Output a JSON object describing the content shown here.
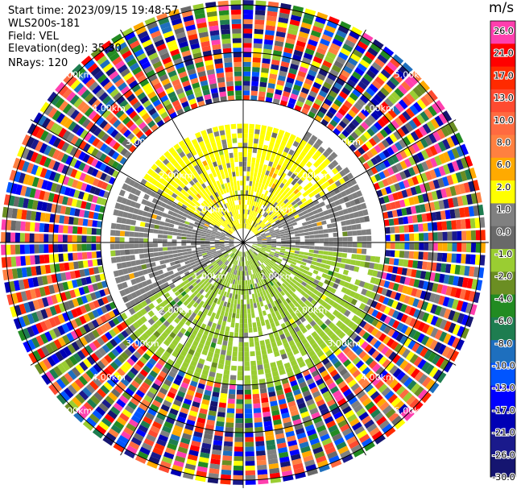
{
  "header": {
    "start_time": "Start time: 2023/09/15 19:48:57",
    "instrument": "WLS200s-181",
    "field": "Field: VEL",
    "elevation": "Elevation(deg): 35.30",
    "nrays": "NRays: 120"
  },
  "chart_data": {
    "type": "heatmap",
    "projection": "polar-ppi",
    "title": "",
    "range_rings_km": [
      1,
      2,
      3,
      4,
      5
    ],
    "ring_labels": [
      "1.00km",
      "2.00km",
      "3.00km",
      "4.00km",
      "5.00km"
    ],
    "max_range_km": 5.1,
    "n_rays": 120,
    "spokes_deg": [
      0,
      30,
      60,
      90,
      120,
      150,
      180,
      210,
      240,
      270,
      300,
      330
    ],
    "colorbar": {
      "unit": "m/s",
      "tick_labels": [
        "26.0",
        "21.0",
        "17.0",
        "13.0",
        "10.0",
        "8.0",
        "6.0",
        "2.0",
        "1.0",
        "0.0",
        "-1.0",
        "-2.0",
        "-4.0",
        "-6.0",
        "-8.0",
        "-10.0",
        "-13.0",
        "-17.0",
        "-21.0",
        "-26.0",
        "-30.0"
      ],
      "bins": [
        {
          "from": 21,
          "to": 30,
          "color": "#ff3fae"
        },
        {
          "from": 17,
          "to": 21,
          "color": "#ff0000"
        },
        {
          "from": 13,
          "to": 17,
          "color": "#ff2a00"
        },
        {
          "from": 10,
          "to": 13,
          "color": "#ff4a30"
        },
        {
          "from": 8,
          "to": 10,
          "color": "#ff6a40"
        },
        {
          "from": 6,
          "to": 8,
          "color": "#ff8040"
        },
        {
          "from": 2,
          "to": 6,
          "color": "#ffaa00"
        },
        {
          "from": 1,
          "to": 2,
          "color": "#ffff00"
        },
        {
          "from": 0,
          "to": 1,
          "color": "#808080"
        },
        {
          "from": -1,
          "to": 0,
          "color": "#696969"
        },
        {
          "from": -2,
          "to": -1,
          "color": "#9acd32"
        },
        {
          "from": -4,
          "to": -2,
          "color": "#6b8e23"
        },
        {
          "from": -6,
          "to": -4,
          "color": "#228b22"
        },
        {
          "from": -8,
          "to": -6,
          "color": "#1e7d50"
        },
        {
          "from": -10,
          "to": -8,
          "color": "#1e6fbe"
        },
        {
          "from": -13,
          "to": -10,
          "color": "#0055ff"
        },
        {
          "from": -17,
          "to": -13,
          "color": "#0000ff"
        },
        {
          "from": -21,
          "to": -17,
          "color": "#0000b4"
        },
        {
          "from": -26,
          "to": -21,
          "color": "#1a1a8c"
        },
        {
          "from": -30,
          "to": -26,
          "color": "#151570"
        }
      ]
    },
    "velocity_regions": [
      {
        "az_from": 300,
        "az_to": 60,
        "r_from_km": 0.3,
        "r_to_km": 2.5,
        "value_ms": 1.5,
        "note": "yellow"
      },
      {
        "az_from": 30,
        "az_to": 95,
        "r_from_km": 0.3,
        "r_to_km": 2.7,
        "value_ms": 0.5,
        "note": "grey"
      },
      {
        "az_from": 95,
        "az_to": 240,
        "r_from_km": 0.2,
        "r_to_km": 3.0,
        "value_ms": -1.5,
        "note": "green"
      },
      {
        "az_from": 240,
        "az_to": 300,
        "r_from_km": 0.2,
        "r_to_km": 2.8,
        "value_ms": 0.0,
        "note": "grey"
      },
      {
        "az_from": 0,
        "az_to": 360,
        "r_from_km": 3.0,
        "r_to_km": 5.1,
        "value_ms": null,
        "note": "noise"
      }
    ]
  }
}
